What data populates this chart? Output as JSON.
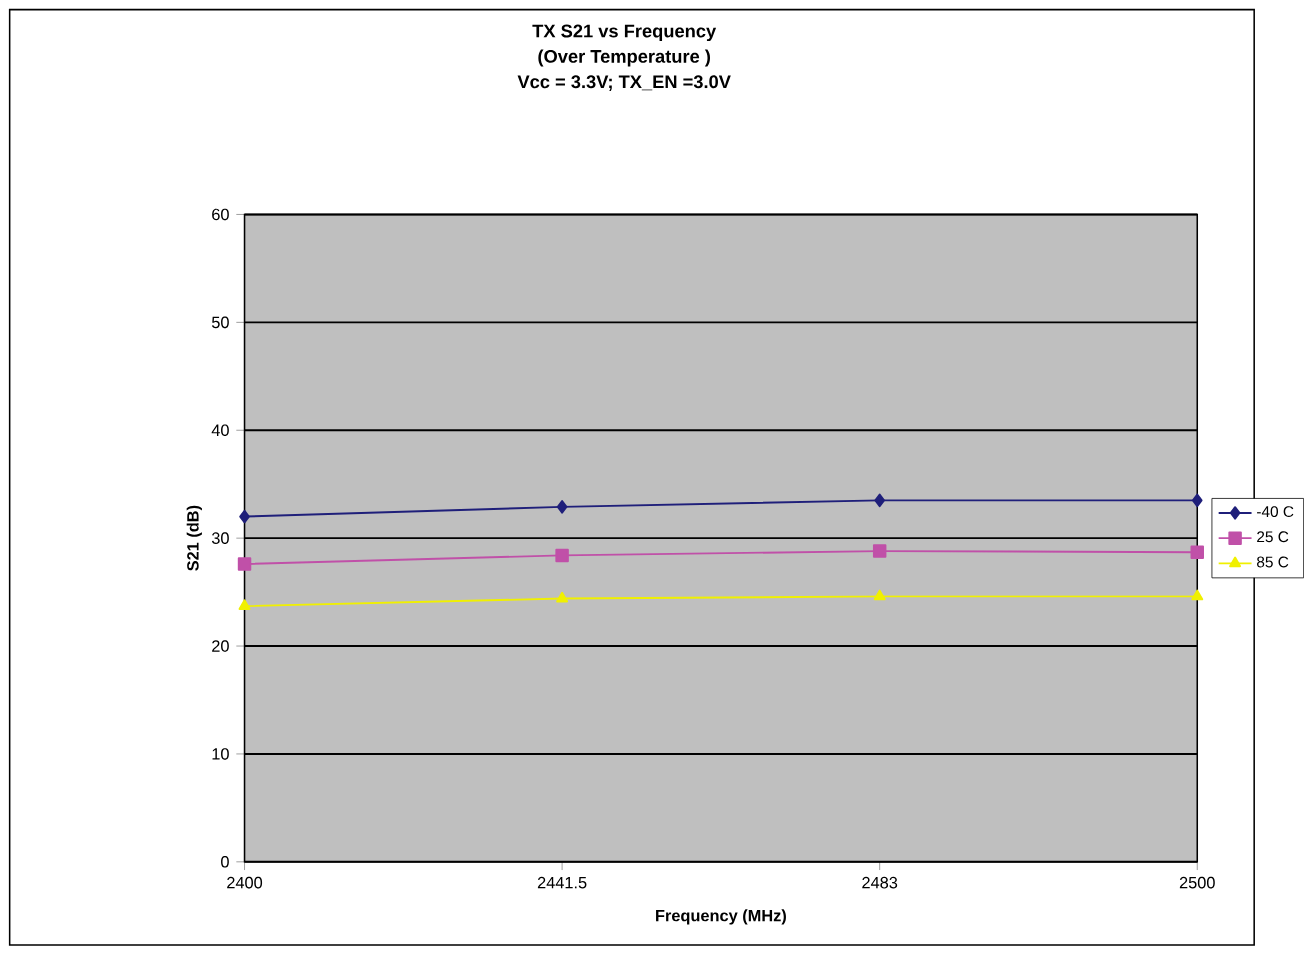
{
  "chart_data": {
    "type": "line",
    "title": "TX S21 vs Frequency",
    "subtitle": "(Over Temperature )",
    "annotations": [
      "Vcc = 3.3V; TX_EN =3.0V"
    ],
    "xlabel": "Frequency (MHz)",
    "ylabel": "S21 (dB)",
    "categories": [
      "2400",
      "2441.5",
      "2483",
      "2500"
    ],
    "series": [
      {
        "name": "-40 C",
        "color": "#1f1f7a",
        "marker": "diamond",
        "values": [
          32.0,
          32.9,
          33.5,
          33.5
        ]
      },
      {
        "name": "25 C",
        "color": "#c050a8",
        "marker": "square",
        "values": [
          27.6,
          28.4,
          28.8,
          28.7
        ]
      },
      {
        "name": "85 C",
        "color": "#f0f000",
        "marker": "triangle",
        "values": [
          23.7,
          24.4,
          24.6,
          24.6
        ]
      }
    ],
    "ylim": [
      0,
      60
    ],
    "yticks": [
      0,
      10,
      20,
      30,
      40,
      50,
      60
    ],
    "grid": "y",
    "legend": "right",
    "line_style": "solid"
  }
}
